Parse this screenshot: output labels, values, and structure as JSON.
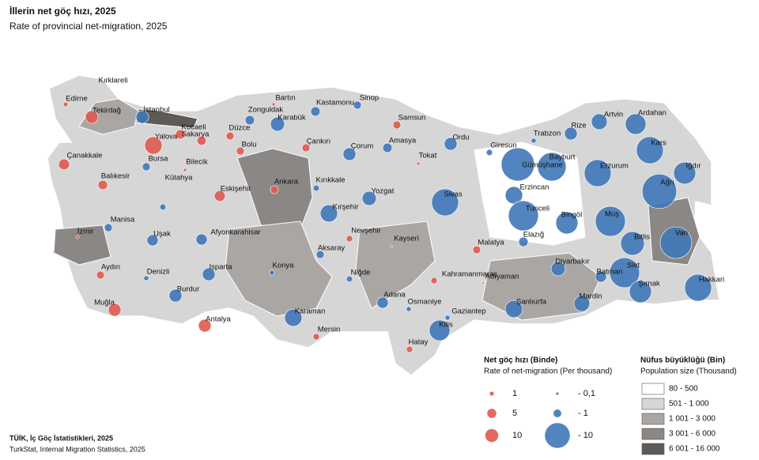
{
  "header": {
    "title": "İllerin net göç hızı, 2025",
    "subtitle": "Rate of provincial net-migration, 2025"
  },
  "colors": {
    "positive": "#e05a50",
    "negative": "#3f78b8"
  },
  "provinces": [
    {
      "name": "Kırklareli",
      "value": 0.1
    },
    {
      "name": "Edirne",
      "value": 1.3
    },
    {
      "name": "Tekirdağ",
      "value": 9.5
    },
    {
      "name": "İstanbul",
      "value": -2.6
    },
    {
      "name": "Kocaeli",
      "value": 5.3
    },
    {
      "name": "Yalova",
      "value": 18
    },
    {
      "name": "Sakarya",
      "value": 5
    },
    {
      "name": "Düzce",
      "value": 3.7
    },
    {
      "name": "Bolu",
      "value": 3.7
    },
    {
      "name": "Bursa",
      "value": -1
    },
    {
      "name": "Bilecik",
      "value": 0.6
    },
    {
      "name": "Çanakkale",
      "value": 7
    },
    {
      "name": "Balıkesir",
      "value": 5.3
    },
    {
      "name": "Kütahya",
      "value": -0.6
    },
    {
      "name": "Eskişehir",
      "value": 7
    },
    {
      "name": "Manisa",
      "value": -1
    },
    {
      "name": "İzmir",
      "value": 0.6
    },
    {
      "name": "Uşak",
      "value": -2
    },
    {
      "name": "Afyonkarahisar",
      "value": -2
    },
    {
      "name": "Aydın",
      "value": 3.7
    },
    {
      "name": "Denizli",
      "value": -0.4
    },
    {
      "name": "Isparta",
      "value": -2.6
    },
    {
      "name": "Burdur",
      "value": -2.6
    },
    {
      "name": "Muğla",
      "value": 9.5
    },
    {
      "name": "Antalya",
      "value": 9.5
    },
    {
      "name": "Ankara",
      "value": 3.7
    },
    {
      "name": "Konya",
      "value": -0.4
    },
    {
      "name": "Zonguldak",
      "value": -1.4
    },
    {
      "name": "Bartın",
      "value": 0.6
    },
    {
      "name": "Karabük",
      "value": -3.2
    },
    {
      "name": "Kastamonu",
      "value": -1.4
    },
    {
      "name": "Sinop",
      "value": -1
    },
    {
      "name": "Çankırı",
      "value": 3.7
    },
    {
      "name": "Çorum",
      "value": -2.6
    },
    {
      "name": "Amasya",
      "value": -1.4
    },
    {
      "name": "Samsun",
      "value": 3.7
    },
    {
      "name": "Tokat",
      "value": 0.6
    },
    {
      "name": "Ordu",
      "value": -2.6
    },
    {
      "name": "Giresun",
      "value": -0.6
    },
    {
      "name": "Trabzon",
      "value": -0.4
    },
    {
      "name": "Rize",
      "value": -2.6
    },
    {
      "name": "Artvin",
      "value": -4
    },
    {
      "name": "Ardahan",
      "value": -6.8
    },
    {
      "name": "Kars",
      "value": -11.6
    },
    {
      "name": "Iğdır",
      "value": -7.8
    },
    {
      "name": "Ağrı",
      "value": -19
    },
    {
      "name": "Erzurum",
      "value": -11.6
    },
    {
      "name": "Gümüşhane",
      "value": -17.6
    },
    {
      "name": "Bayburt",
      "value": -13
    },
    {
      "name": "Erzincan",
      "value": -4.8
    },
    {
      "name": "Tunceli",
      "value": -14.4
    },
    {
      "name": "Bingöl",
      "value": -7.8
    },
    {
      "name": "Muş",
      "value": -14.4
    },
    {
      "name": "Bitlis",
      "value": -9
    },
    {
      "name": "Van",
      "value": -16
    },
    {
      "name": "Kırıkkale",
      "value": -0.6
    },
    {
      "name": "Yozgat",
      "value": -3.2
    },
    {
      "name": "Kırşehir",
      "value": -4.8
    },
    {
      "name": "Sivas",
      "value": -11.6
    },
    {
      "name": "Nevşehir",
      "value": 2.4
    },
    {
      "name": "Kayseri",
      "value": 0.3
    },
    {
      "name": "Aksaray",
      "value": -1
    },
    {
      "name": "Niğde",
      "value": -0.6
    },
    {
      "name": "Malatya",
      "value": 3.7
    },
    {
      "name": "Elazığ",
      "value": -1.4
    },
    {
      "name": "Diyarbakır",
      "value": -3.2
    },
    {
      "name": "Adıyaman",
      "value": 0.3
    },
    {
      "name": "Kahramanmaraş",
      "value": 2.4
    },
    {
      "name": "Batman",
      "value": -2
    },
    {
      "name": "Siirt",
      "value": -14.4
    },
    {
      "name": "Şırnak",
      "value": -7.8
    },
    {
      "name": "Hakkari",
      "value": -11.6
    },
    {
      "name": "Mardin",
      "value": -4
    },
    {
      "name": "Şanlıurfa",
      "value": -4.8
    },
    {
      "name": "Adana",
      "value": -2
    },
    {
      "name": "Osmaniye",
      "value": -0.4
    },
    {
      "name": "Gaziantep",
      "value": -0.4
    },
    {
      "name": "Kilis",
      "value": -6.8
    },
    {
      "name": "Hatay",
      "value": 2.4
    },
    {
      "name": "Mersin",
      "value": 2.4
    },
    {
      "name": "Karaman",
      "value": -4.8
    }
  ],
  "rate_legend": {
    "title": "Net göç hızı (Binde)",
    "subtitle": "Rate of net-migration (Per thousand)",
    "items": [
      1,
      5,
      10,
      {
        "value": -0.1,
        "label": "- 0,1"
      },
      {
        "value": -1,
        "label": "- 1"
      },
      {
        "value": -10,
        "label": "- 10"
      }
    ]
  },
  "population_legend": {
    "title": "Nüfus büyüklüğü (Bin)",
    "subtitle": "Population size (Thousand)",
    "classes": [
      {
        "label": "80 - 500",
        "color": "#ffffff"
      },
      {
        "label": "501 - 1 000",
        "color": "#d6d6d6"
      },
      {
        "label": "1 001 - 3 000",
        "color": "#aaa6a3"
      },
      {
        "label": "3 001 - 6 000",
        "color": "#8b8785"
      },
      {
        "label": "6 001 - 16 000",
        "color": "#5e5a58"
      }
    ]
  },
  "source": {
    "line1": "TÜİK, İç Göç İstatistikleri, 2025",
    "line2": "TurkStat, Internal Migration Statistics, 2025"
  }
}
